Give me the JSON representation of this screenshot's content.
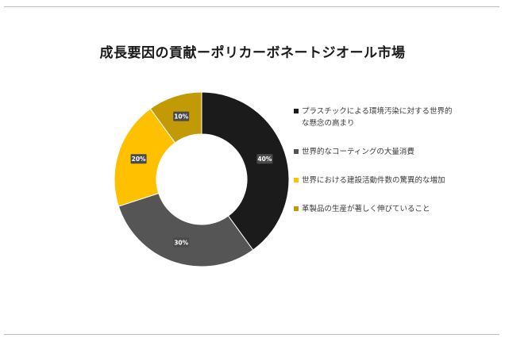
{
  "chart_data": {
    "type": "pie",
    "title": "成長要因の貢献ーポリカーボネートジオール市場",
    "donut": true,
    "categories": [
      "プラスチックによる環境汚染に対する世界的な懸念の高まり",
      "世界的なコーティングの大量消費",
      "世界における建設活動件数の驚異的な増加",
      "革製品の生産が著しく伸びていること"
    ],
    "values": [
      40,
      30,
      20,
      10
    ],
    "data_labels": [
      "40%",
      "30%",
      "20%",
      "10%"
    ],
    "colors": [
      "#1b1b1b",
      "#555555",
      "#ffc000",
      "#c29a05"
    ],
    "legend_position": "right"
  }
}
